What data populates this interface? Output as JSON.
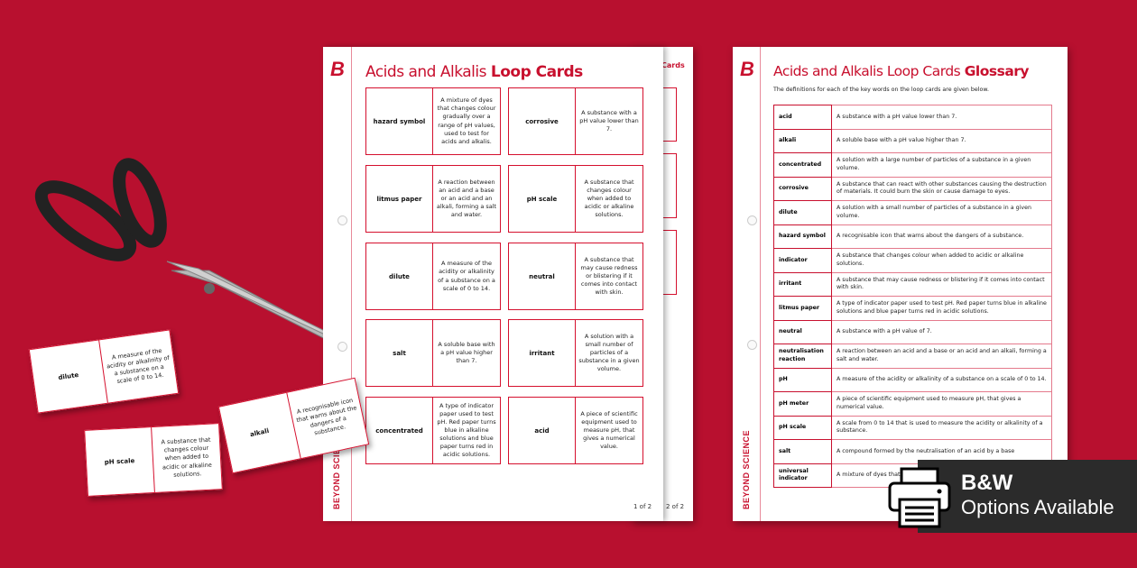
{
  "colors": {
    "background": "#b8102f",
    "brand_red": "#c8102e",
    "badge_bg": "#2b2b2b"
  },
  "loop_cards_page": {
    "logo": "B",
    "title_regular": "Acids and Alkalis",
    "title_bold": "Loop Cards",
    "brand": "BEYOND SCIENCE",
    "page_number": "1 of 2",
    "cards": [
      {
        "term": "hazard symbol",
        "definition": "A mixture of dyes that changes colour gradually over a range of pH values, used to test for acids and alkalis."
      },
      {
        "term": "corrosive",
        "definition": "A substance with a pH value lower than 7."
      },
      {
        "term": "litmus paper",
        "definition": "A reaction between an acid and a base or an acid and an alkali, forming a salt and water."
      },
      {
        "term": "pH scale",
        "definition": "A substance that changes colour when added to acidic or alkaline solutions."
      },
      {
        "term": "dilute",
        "definition": "A measure of the acidity or alkalinity of a substance on a scale of 0 to 14."
      },
      {
        "term": "neutral",
        "definition": "A substance that may cause redness or blistering if it comes into contact with skin."
      },
      {
        "term": "salt",
        "definition": "A soluble base with a pH value higher than 7."
      },
      {
        "term": "irritant",
        "definition": "A solution with a small number of particles of a substance in a given volume."
      },
      {
        "term": "concentrated",
        "definition": "A type of indicator paper used to test pH. Red paper turns blue in alkaline solutions and blue paper turns red in acidic solutions."
      },
      {
        "term": "acid",
        "definition": "A piece of scientific equipment used to measure pH, that gives a numerical value."
      }
    ]
  },
  "second_page": {
    "title_fragment": "Cards",
    "page_number": "2 of 2"
  },
  "glossary_page": {
    "logo": "B",
    "title_regular": "Acids and Alkalis Loop Cards",
    "title_bold": "Glossary",
    "subtitle": "The definitions for each of the key words on the loop cards are given below.",
    "brand": "BEYOND SCIENCE",
    "rows": [
      {
        "term": "acid",
        "definition": "A substance with a pH value lower than 7."
      },
      {
        "term": "alkali",
        "definition": "A soluble base with a pH value higher than 7."
      },
      {
        "term": "concentrated",
        "definition": "A solution with a large number of particles of a substance in a given volume."
      },
      {
        "term": "corrosive",
        "definition": "A substance that can react with other substances causing the destruction of materials. It could burn the skin or cause damage to eyes."
      },
      {
        "term": "dilute",
        "definition": "A solution with a small number of particles of a substance in a given volume."
      },
      {
        "term": "hazard symbol",
        "definition": "A recognisable icon that warns about the dangers of a substance."
      },
      {
        "term": "indicator",
        "definition": "A substance that changes colour when added to acidic or alkaline solutions."
      },
      {
        "term": "irritant",
        "definition": "A substance that may cause redness or blistering if it comes into contact with skin."
      },
      {
        "term": "litmus paper",
        "definition": "A type of indicator paper used to test pH. Red paper turns blue in alkaline solutions and blue paper turns red in acidic solutions."
      },
      {
        "term": "neutral",
        "definition": "A substance with a pH value of 7."
      },
      {
        "term": "neutralisation reaction",
        "definition": "A reaction between an acid and a base or an acid and an alkali, forming a salt and water."
      },
      {
        "term": "pH",
        "definition": "A measure of the acidity or alkalinity of a substance on a scale of 0 to 14."
      },
      {
        "term": "pH meter",
        "definition": "A piece of scientific equipment used to measure pH, that gives a numerical value."
      },
      {
        "term": "pH scale",
        "definition": "A scale from 0 to 14 that is used to measure the acidity or alkalinity of a substance."
      },
      {
        "term": "salt",
        "definition": "A compound formed by the neutralisation of an acid by a base"
      },
      {
        "term": "universal indicator",
        "definition": "A mixture of dyes that ... values, used to test ..."
      }
    ]
  },
  "loose_cards": [
    {
      "term": "dilute",
      "definition": "A measure of the acidity or alkalinity of a substance on a scale of 0 to 14."
    },
    {
      "term": "pH scale",
      "definition": "A substance that changes colour when added to acidic or alkaline solutions."
    },
    {
      "term": "alkali",
      "definition": "A recognisable icon that warns about the dangers of a substance."
    }
  ],
  "badge": {
    "icon": "printer-icon",
    "line1": "B&W",
    "line2": "Options Available"
  }
}
